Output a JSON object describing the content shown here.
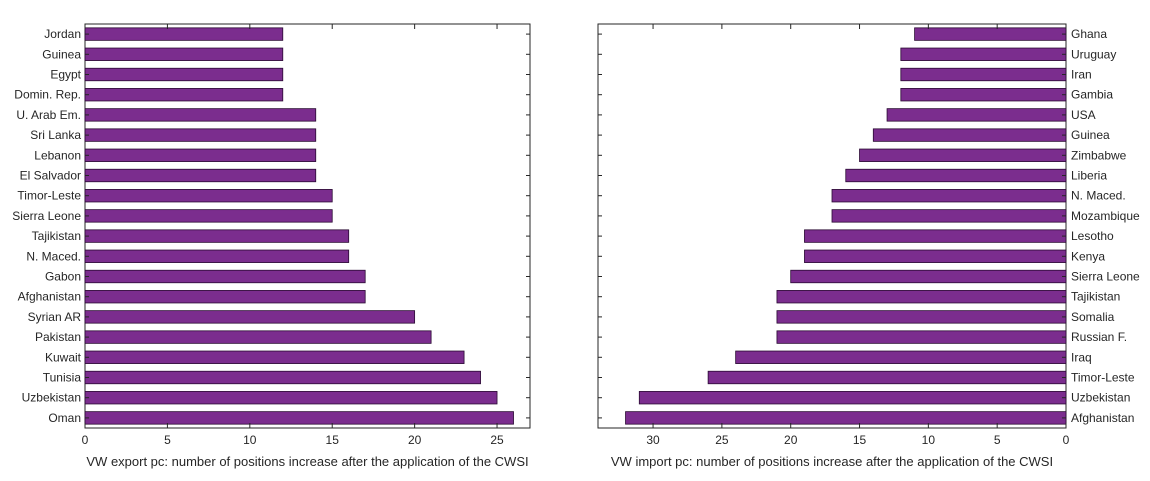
{
  "colors": {
    "bar": "#7b2d8e",
    "bar_edge": "#2a0a33",
    "axis": "#262626",
    "background": "#ffffff"
  },
  "chart_data": [
    {
      "type": "bar",
      "orientation": "horizontal",
      "categories": [
        "Jordan",
        "Guinea",
        "Egypt",
        "Domin. Rep.",
        "U. Arab Em.",
        "Sri Lanka",
        "Lebanon",
        "El Salvador",
        "Timor-Leste",
        "Sierra Leone",
        "Tajikistan",
        "N. Maced.",
        "Gabon",
        "Afghanistan",
        "Syrian AR",
        "Pakistan",
        "Kuwait",
        "Tunisia",
        "Uzbekistan",
        "Oman"
      ],
      "values": [
        12,
        12,
        12,
        12,
        14,
        14,
        14,
        14,
        15,
        15,
        16,
        16,
        17,
        17,
        20,
        21,
        23,
        24,
        25,
        26
      ],
      "xlabel": "VW export pc: number of positions increase after the application of the CWSI",
      "ylabel": "",
      "xlim": [
        0,
        27
      ],
      "xticks": [
        0,
        5,
        10,
        15,
        20,
        25
      ],
      "x_reversed": false,
      "category_axis_side": "left",
      "grid": false,
      "legend": "none"
    },
    {
      "type": "bar",
      "orientation": "horizontal",
      "categories": [
        "Ghana",
        "Uruguay",
        "Iran",
        "Gambia",
        "USA",
        "Guinea",
        "Zimbabwe",
        "Liberia",
        "N. Maced.",
        "Mozambique",
        "Lesotho",
        "Kenya",
        "Sierra Leone",
        "Tajikistan",
        "Somalia",
        "Russian F.",
        "Iraq",
        "Timor-Leste",
        "Uzbekistan",
        "Afghanistan"
      ],
      "values": [
        11,
        12,
        12,
        12,
        13,
        14,
        15,
        16,
        17,
        17,
        19,
        19,
        20,
        21,
        21,
        21,
        24,
        26,
        31,
        32
      ],
      "xlabel": "VW import pc: number of positions increase after the application of the CWSI",
      "ylabel": "",
      "xlim": [
        0,
        34
      ],
      "xticks": [
        30,
        25,
        20,
        15,
        10,
        5,
        0
      ],
      "x_reversed": true,
      "category_axis_side": "right",
      "grid": false,
      "legend": "none"
    }
  ]
}
